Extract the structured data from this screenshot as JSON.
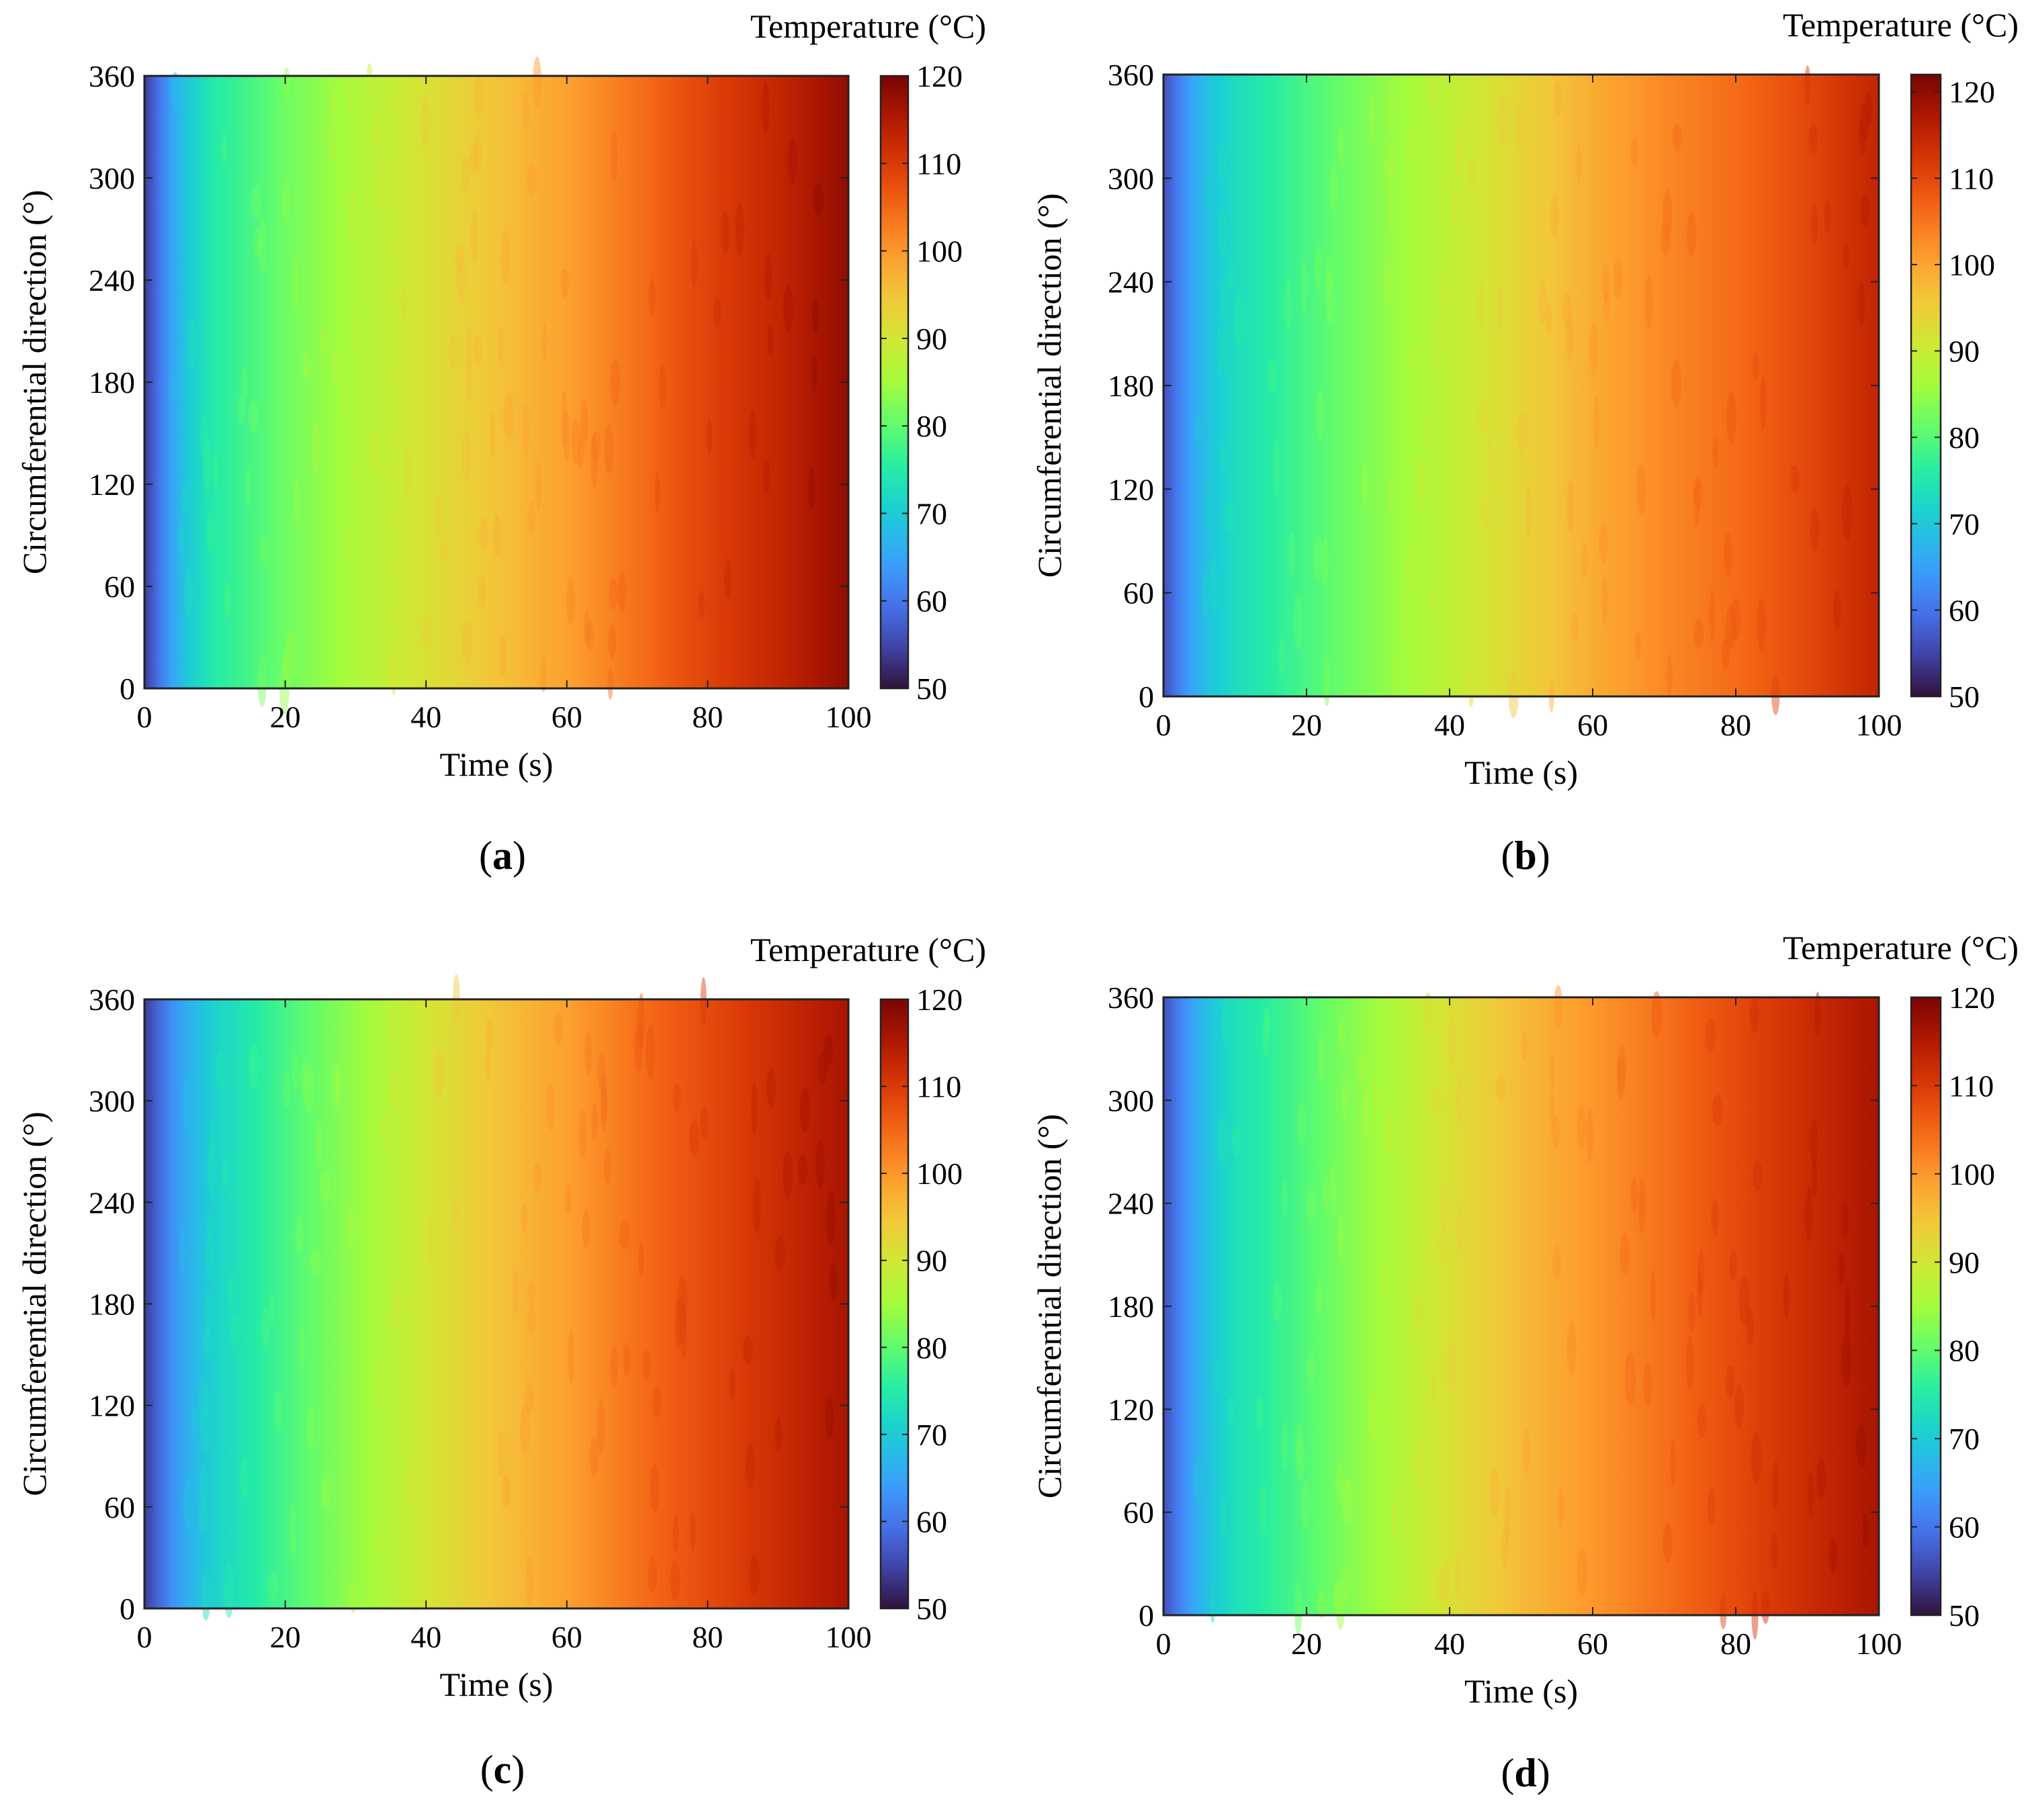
{
  "figure": {
    "panels": [
      "a",
      "b",
      "c",
      "d"
    ]
  },
  "chart_data": [
    {
      "id": "a",
      "panel_label": "a",
      "type": "heatmap",
      "xlabel": "Time (s)",
      "ylabel": "Circumferential direction (°)",
      "colorbar_title": "Temperature (°C)",
      "xlim": [
        0,
        100
      ],
      "ylim": [
        0,
        360
      ],
      "clim": [
        50,
        120
      ],
      "x_ticks": [
        0,
        20,
        40,
        60,
        80,
        100
      ],
      "y_ticks": [
        0,
        60,
        120,
        180,
        240,
        300,
        360
      ],
      "cb_ticks": [
        50,
        60,
        70,
        80,
        90,
        100,
        110,
        120
      ],
      "temperature_profile": {
        "time": [
          0,
          5,
          10,
          20,
          30,
          40,
          50,
          60,
          70,
          80,
          90,
          100
        ],
        "temperature": [
          54,
          68,
          75,
          81,
          86,
          91,
          95,
          99,
          104,
          109,
          113,
          118
        ]
      }
    },
    {
      "id": "b",
      "panel_label": "b",
      "type": "heatmap",
      "xlabel": "Time (s)",
      "ylabel": "Circumferential direction (°)",
      "colorbar_title": "Temperature (°C)",
      "xlim": [
        0,
        100
      ],
      "ylim": [
        0,
        360
      ],
      "clim": [
        50,
        122
      ],
      "x_ticks": [
        0,
        20,
        40,
        60,
        80,
        100
      ],
      "y_ticks": [
        0,
        60,
        120,
        180,
        240,
        300,
        360
      ],
      "cb_ticks": [
        50,
        60,
        70,
        80,
        90,
        100,
        110,
        120
      ],
      "temperature_profile": {
        "time": [
          0,
          5,
          10,
          20,
          30,
          40,
          50,
          60,
          70,
          80,
          90,
          100
        ],
        "temperature": [
          56,
          68,
          73,
          79,
          84,
          89,
          94,
          99,
          103,
          106,
          110,
          115
        ]
      }
    },
    {
      "id": "c",
      "panel_label": "c",
      "type": "heatmap",
      "xlabel": "Time (s)",
      "ylabel": "Circumferential direction (°)",
      "colorbar_title": "Temperature (°C)",
      "xlim": [
        0,
        100
      ],
      "ylim": [
        0,
        360
      ],
      "clim": [
        50,
        120
      ],
      "x_ticks": [
        0,
        20,
        40,
        60,
        80,
        100
      ],
      "y_ticks": [
        0,
        60,
        120,
        180,
        240,
        300,
        360
      ],
      "cb_ticks": [
        50,
        60,
        70,
        80,
        90,
        100,
        110,
        120
      ],
      "temperature_profile": {
        "time": [
          0,
          5,
          10,
          20,
          30,
          40,
          50,
          60,
          70,
          80,
          90,
          100
        ],
        "temperature": [
          54,
          65,
          71,
          78,
          84,
          90,
          95,
          99,
          104,
          108,
          112,
          116
        ]
      }
    },
    {
      "id": "d",
      "panel_label": "d",
      "type": "heatmap",
      "xlabel": "Time (s)",
      "ylabel": "Circumferential direction (°)",
      "colorbar_title": "Temperature (°C)",
      "xlim": [
        0,
        100
      ],
      "ylim": [
        0,
        360
      ],
      "clim": [
        50,
        120
      ],
      "x_ticks": [
        0,
        20,
        40,
        60,
        80,
        100
      ],
      "y_ticks": [
        0,
        60,
        120,
        180,
        240,
        300,
        360
      ],
      "cb_ticks": [
        50,
        60,
        70,
        80,
        90,
        100,
        110,
        120
      ],
      "temperature_profile": {
        "time": [
          0,
          5,
          10,
          20,
          30,
          40,
          50,
          60,
          70,
          80,
          90,
          100
        ],
        "temperature": [
          56,
          67,
          73,
          79,
          85,
          91,
          96,
          100,
          104,
          108,
          112,
          116
        ]
      }
    }
  ]
}
